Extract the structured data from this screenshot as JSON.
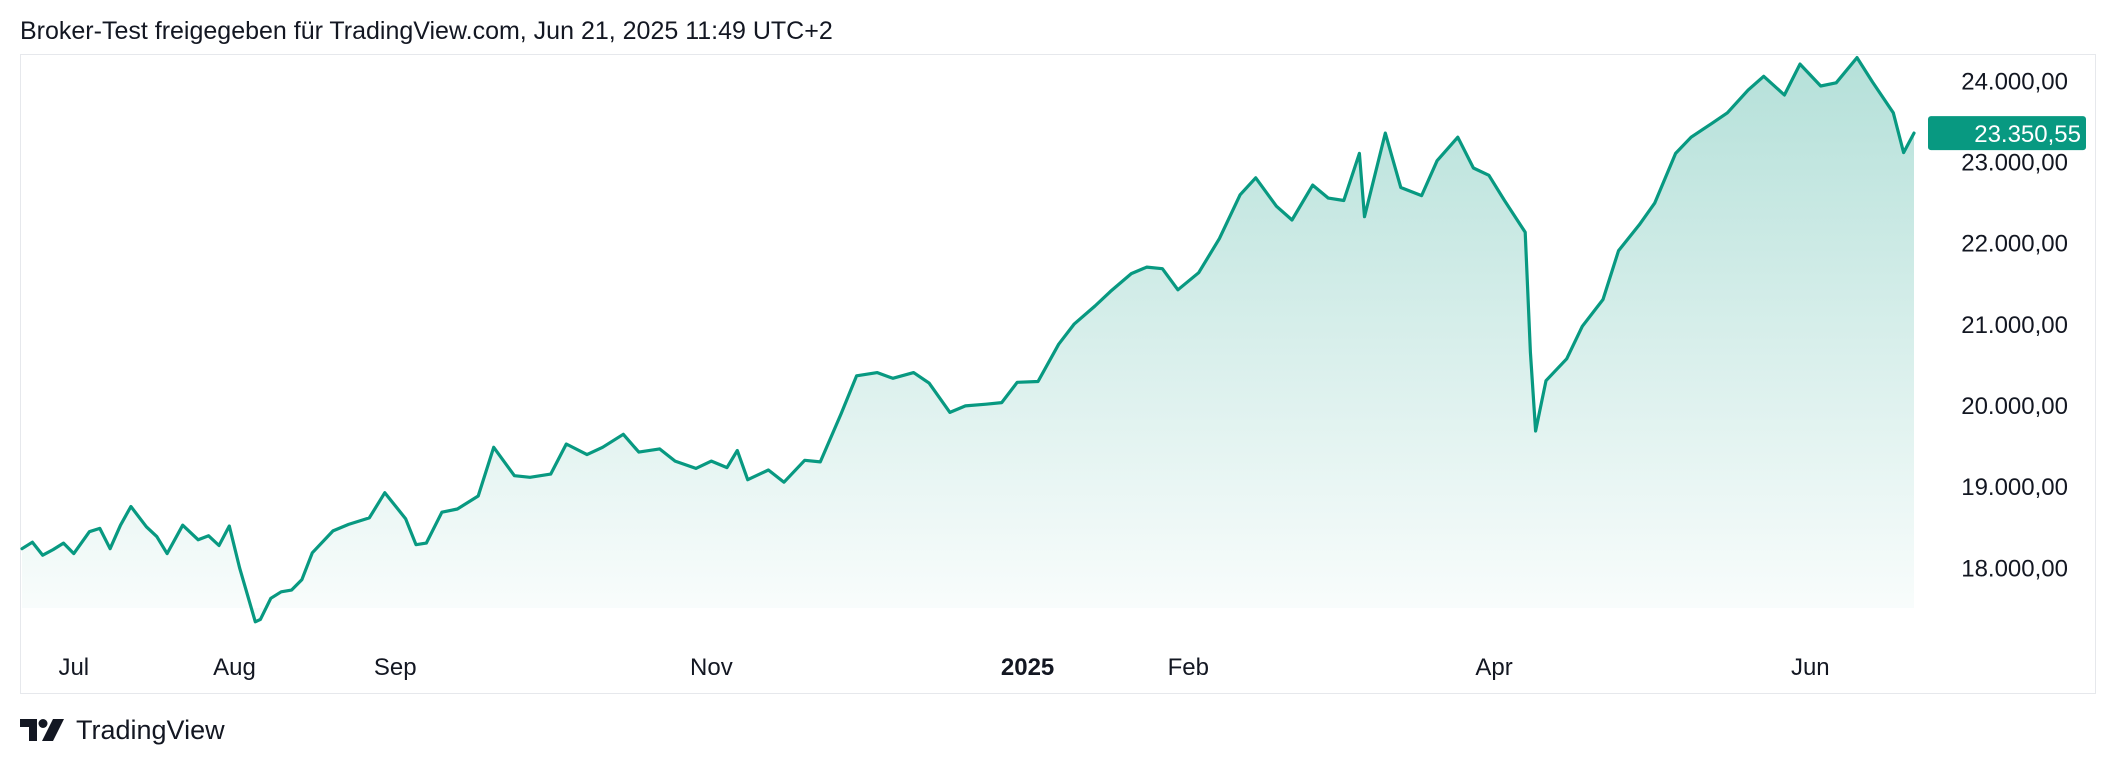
{
  "header": {
    "title": "Broker-Test freigegeben für TradingView.com, Jun 21, 2025 11:49 UTC+2"
  },
  "footer": {
    "brand_label": "TradingView",
    "brand_icon": "tradingview-logo-icon"
  },
  "colors": {
    "line": "#089981",
    "area_top": "#089981",
    "price_badge": "#089981",
    "axis_text": "#131722",
    "frame": "#e6e8ec"
  },
  "chart_data": {
    "type": "area",
    "title": "",
    "xlabel": "",
    "ylabel": "",
    "ylim": [
      17500,
      24300
    ],
    "grid": false,
    "x_range": [
      "2024-06-21",
      "2025-06-21"
    ],
    "y_ticks": [
      {
        "value": 24000,
        "label": "24.000,00"
      },
      {
        "value": 23000,
        "label": "23.000,00"
      },
      {
        "value": 22000,
        "label": "22.000,00"
      },
      {
        "value": 21000,
        "label": "21.000,00"
      },
      {
        "value": 20000,
        "label": "20.000,00"
      },
      {
        "value": 19000,
        "label": "19.000,00"
      },
      {
        "value": 18000,
        "label": "18.000,00"
      }
    ],
    "x_ticks": [
      {
        "date": "2024-07-01",
        "label": "Jul",
        "bold": false
      },
      {
        "date": "2024-08-01",
        "label": "Aug",
        "bold": false
      },
      {
        "date": "2024-09-01",
        "label": "Sep",
        "bold": false
      },
      {
        "date": "2024-11-01",
        "label": "Nov",
        "bold": false
      },
      {
        "date": "2025-01-01",
        "label": "2025",
        "bold": true
      },
      {
        "date": "2025-02-01",
        "label": "Feb",
        "bold": false
      },
      {
        "date": "2025-04-01",
        "label": "Apr",
        "bold": false
      },
      {
        "date": "2025-06-01",
        "label": "Jun",
        "bold": false
      }
    ],
    "last_value": {
      "value": 23350.55,
      "label": "23.350,55"
    },
    "series": [
      {
        "x": [
          "2024-06-21",
          "2024-06-23",
          "2024-06-25",
          "2024-06-27",
          "2024-06-29",
          "2024-07-01",
          "2024-07-04",
          "2024-07-06",
          "2024-07-08",
          "2024-07-10",
          "2024-07-12",
          "2024-07-15",
          "2024-07-17",
          "2024-07-19",
          "2024-07-22",
          "2024-07-25",
          "2024-07-27",
          "2024-07-29",
          "2024-07-31",
          "2024-08-02",
          "2024-08-05",
          "2024-08-06",
          "2024-08-08",
          "2024-08-10",
          "2024-08-12",
          "2024-08-14",
          "2024-08-16",
          "2024-08-20",
          "2024-08-23",
          "2024-08-27",
          "2024-08-30",
          "2024-09-03",
          "2024-09-05",
          "2024-09-07",
          "2024-09-10",
          "2024-09-13",
          "2024-09-17",
          "2024-09-20",
          "2024-09-24",
          "2024-09-27",
          "2024-10-01",
          "2024-10-04",
          "2024-10-08",
          "2024-10-11",
          "2024-10-15",
          "2024-10-18",
          "2024-10-22",
          "2024-10-25",
          "2024-10-29",
          "2024-11-01",
          "2024-11-04",
          "2024-11-06",
          "2024-11-08",
          "2024-11-12",
          "2024-11-15",
          "2024-11-19",
          "2024-11-22",
          "2024-11-26",
          "2024-11-29",
          "2024-12-03",
          "2024-12-06",
          "2024-12-10",
          "2024-12-13",
          "2024-12-17",
          "2024-12-20",
          "2024-12-24",
          "2024-12-27",
          "2024-12-30",
          "2025-01-03",
          "2025-01-07",
          "2025-01-10",
          "2025-01-14",
          "2025-01-17",
          "2025-01-21",
          "2025-01-24",
          "2025-01-27",
          "2025-01-30",
          "2025-02-03",
          "2025-02-07",
          "2025-02-11",
          "2025-02-14",
          "2025-02-18",
          "2025-02-21",
          "2025-02-25",
          "2025-02-28",
          "2025-03-03",
          "2025-03-06",
          "2025-03-07",
          "2025-03-11",
          "2025-03-14",
          "2025-03-18",
          "2025-03-21",
          "2025-03-25",
          "2025-03-28",
          "2025-03-31",
          "2025-04-03",
          "2025-04-07",
          "2025-04-08",
          "2025-04-09",
          "2025-04-11",
          "2025-04-15",
          "2025-04-18",
          "2025-04-22",
          "2025-04-25",
          "2025-04-29",
          "2025-05-02",
          "2025-05-06",
          "2025-05-09",
          "2025-05-13",
          "2025-05-16",
          "2025-05-20",
          "2025-05-23",
          "2025-05-27",
          "2025-05-30",
          "2025-06-03",
          "2025-06-06",
          "2025-06-10",
          "2025-06-13",
          "2025-06-17",
          "2025-06-19",
          "2025-06-21"
        ],
        "y": [
          18230,
          18310,
          18150,
          18220,
          18300,
          18170,
          18440,
          18480,
          18230,
          18520,
          18750,
          18500,
          18380,
          18170,
          18520,
          18340,
          18390,
          18270,
          18510,
          17990,
          17330,
          17360,
          17620,
          17700,
          17720,
          17850,
          18180,
          18450,
          18530,
          18610,
          18920,
          18600,
          18280,
          18300,
          18680,
          18720,
          18880,
          19480,
          19130,
          19110,
          19150,
          19520,
          19390,
          19480,
          19640,
          19420,
          19460,
          19310,
          19220,
          19310,
          19230,
          19440,
          19080,
          19200,
          19050,
          19320,
          19300,
          19890,
          20360,
          20400,
          20330,
          20400,
          20270,
          19910,
          19990,
          20010,
          20030,
          20280,
          20290,
          20750,
          21000,
          21220,
          21400,
          21620,
          21700,
          21680,
          21420,
          21630,
          22050,
          22590,
          22800,
          22450,
          22280,
          22710,
          22550,
          22520,
          23100,
          22320,
          23350,
          22680,
          22580,
          23010,
          23300,
          22920,
          22830,
          22520,
          22130,
          20650,
          19680,
          20300,
          20570,
          20970,
          21300,
          21900,
          22220,
          22490,
          23100,
          23300,
          23470,
          23600,
          23880,
          24050,
          23820,
          24200,
          23930,
          23970,
          24280,
          23980,
          23600,
          23110,
          23350.55
        ]
      }
    ]
  }
}
